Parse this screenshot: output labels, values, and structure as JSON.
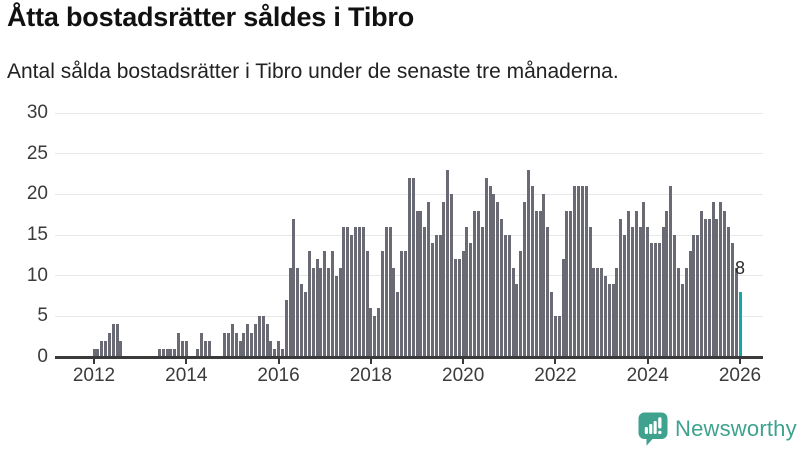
{
  "header": {
    "title": "Åtta bostadsrätter såldes i Tibro",
    "subtitle": "Antal sålda bostadsrätter i Tibro under de senaste tre månaderna."
  },
  "chart_data": {
    "type": "bar",
    "title": "Åtta bostadsrätter såldes i Tibro",
    "subtitle": "Antal sålda bostadsrätter i Tibro under de senaste tre månaderna.",
    "x_start": "2012-01",
    "x_frequency": "monthly",
    "values": [
      1,
      1,
      2,
      2,
      3,
      4,
      4,
      2,
      0,
      0,
      0,
      0,
      0,
      0,
      0,
      0,
      0,
      1,
      1,
      1,
      1,
      1,
      3,
      2,
      2,
      0,
      0,
      1,
      3,
      2,
      2,
      0,
      0,
      0,
      3,
      3,
      4,
      3,
      2,
      3,
      4,
      3,
      4,
      5,
      5,
      4,
      2,
      1,
      2,
      1,
      7,
      11,
      17,
      11,
      9,
      8,
      13,
      11,
      12,
      11,
      13,
      11,
      13,
      10,
      11,
      16,
      16,
      15,
      16,
      16,
      16,
      13,
      6,
      5,
      6,
      13,
      16,
      16,
      11,
      8,
      13,
      13,
      22,
      22,
      18,
      18,
      16,
      19,
      14,
      15,
      15,
      19,
      23,
      20,
      12,
      12,
      13,
      16,
      14,
      18,
      18,
      16,
      22,
      21,
      20,
      19,
      17,
      15,
      15,
      11,
      9,
      13,
      19,
      23,
      21,
      18,
      18,
      20,
      16,
      8,
      5,
      5,
      12,
      18,
      18,
      21,
      21,
      21,
      21,
      16,
      11,
      11,
      11,
      10,
      9,
      9,
      11,
      17,
      15,
      18,
      16,
      18,
      16,
      19,
      16,
      14,
      14,
      14,
      16,
      18,
      21,
      15,
      11,
      9,
      11,
      13,
      15,
      15,
      18,
      17,
      17,
      19,
      17,
      19,
      18,
      16,
      14,
      11,
      8
    ],
    "ylim": [
      0,
      30
    ],
    "yticks": [
      0,
      5,
      10,
      15,
      20,
      25,
      30
    ],
    "xticks": [
      "2012",
      "2014",
      "2016",
      "2018",
      "2020",
      "2022",
      "2024",
      "2026"
    ],
    "grid": true,
    "legend": false,
    "bar_color": "#6a6a75",
    "highlight_color": "#14a7a3",
    "highlight_index": 168,
    "highlight_value": 8,
    "highlight_label": "8"
  },
  "footer": {
    "brand": "Newsworthy",
    "brand_color": "#3ea28f"
  }
}
